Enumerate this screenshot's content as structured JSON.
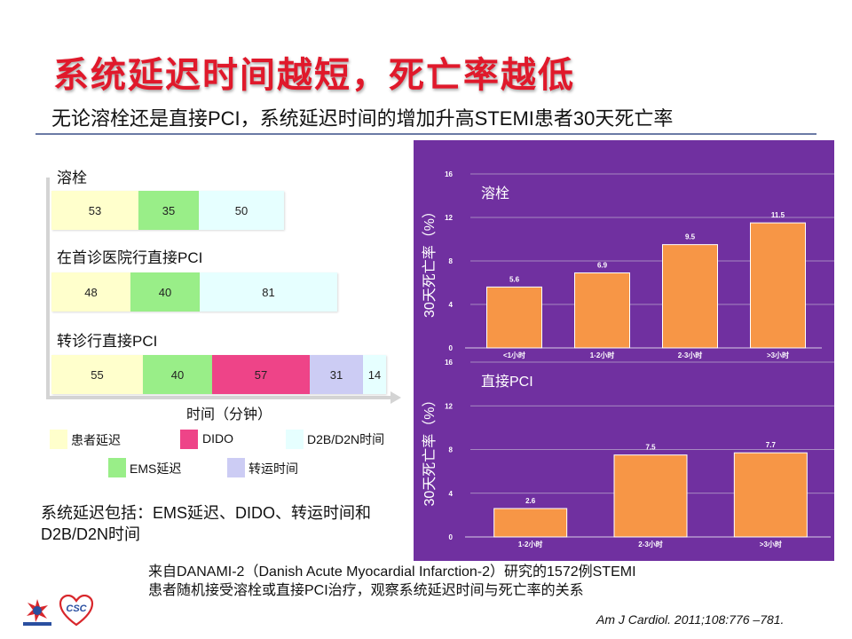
{
  "title": "系统延迟时间越短，死亡率越低",
  "subtitle": "无论溶栓还是直接PCI，系统延迟时间的增加升高STEMI患者30天死亡率",
  "stacked": {
    "groups": [
      {
        "label": "溶栓",
        "segments": [
          {
            "category": "患者延迟",
            "value": "53"
          },
          {
            "category": "EMS延迟",
            "value": "35"
          },
          {
            "category": "D2B/D2N时间",
            "value": "50"
          }
        ]
      },
      {
        "label": "在首诊医院行直接PCI",
        "segments": [
          {
            "category": "患者延迟",
            "value": "48"
          },
          {
            "category": "EMS延迟",
            "value": "40"
          },
          {
            "category": "D2B/D2N时间",
            "value": "81"
          }
        ]
      },
      {
        "label": "转诊行直接PCI",
        "segments": [
          {
            "category": "患者延迟",
            "value": "55"
          },
          {
            "category": "EMS延迟",
            "value": "40"
          },
          {
            "category": "DIDO",
            "value": "57"
          },
          {
            "category": "转运时间",
            "value": "31"
          },
          {
            "category": "D2B/D2N时间",
            "value": "14"
          }
        ]
      }
    ],
    "xlabel": "时间（分钟）",
    "colors": {
      "患者延迟": "#ffffcc",
      "EMS延迟": "#99ee88",
      "DIDO": "#ee4488",
      "转运时间": "#ccccf4",
      "D2B/D2N时间": "#e6ffff"
    },
    "legend": [
      {
        "label": "患者延迟",
        "key": "患者延迟"
      },
      {
        "label": "DIDO",
        "key": "DIDO"
      },
      {
        "label": "D2B/D2N时间",
        "key": "D2B/D2N时间"
      },
      {
        "label": "EMS延迟",
        "key": "EMS延迟"
      },
      {
        "label": "转运时间",
        "key": "转运时间"
      }
    ]
  },
  "note": "系统延迟包括：EMS延迟、DIDO、转运时间和D2B/D2N时间",
  "chart_data": [
    {
      "type": "bar",
      "title": "溶栓",
      "ylabel": "30天死亡率（%）",
      "categories": [
        "<1小时",
        "1-2小时",
        "2-3小时",
        ">3小时"
      ],
      "values": [
        5.6,
        6.9,
        9.5,
        11.5
      ],
      "ylim": [
        0,
        16
      ],
      "yticks": [
        0,
        4,
        8,
        12,
        16
      ],
      "grid": true,
      "bar_color": "#f79646"
    },
    {
      "type": "bar",
      "title": "直接PCI",
      "ylabel": "30天死亡率（%）",
      "categories": [
        "1-2小时",
        "2-3小时",
        ">3小时"
      ],
      "values": [
        2.6,
        7.5,
        7.7
      ],
      "ylim": [
        0,
        16
      ],
      "yticks": [
        0,
        4,
        8,
        12,
        16
      ],
      "grid": true,
      "bar_color": "#f79646"
    }
  ],
  "source": {
    "line1": "来自DANAMI-2（Danish Acute Myocardial Infarction-2）研究的1572例STEMI",
    "line2": "患者随机接受溶栓或直接PCI治疗，观察系统延迟时间与死亡率的关系"
  },
  "citation": "Am J Cardiol. 2011;108:776 –781.",
  "logos": {
    "left_logo": "",
    "right_logo": "CSC"
  }
}
